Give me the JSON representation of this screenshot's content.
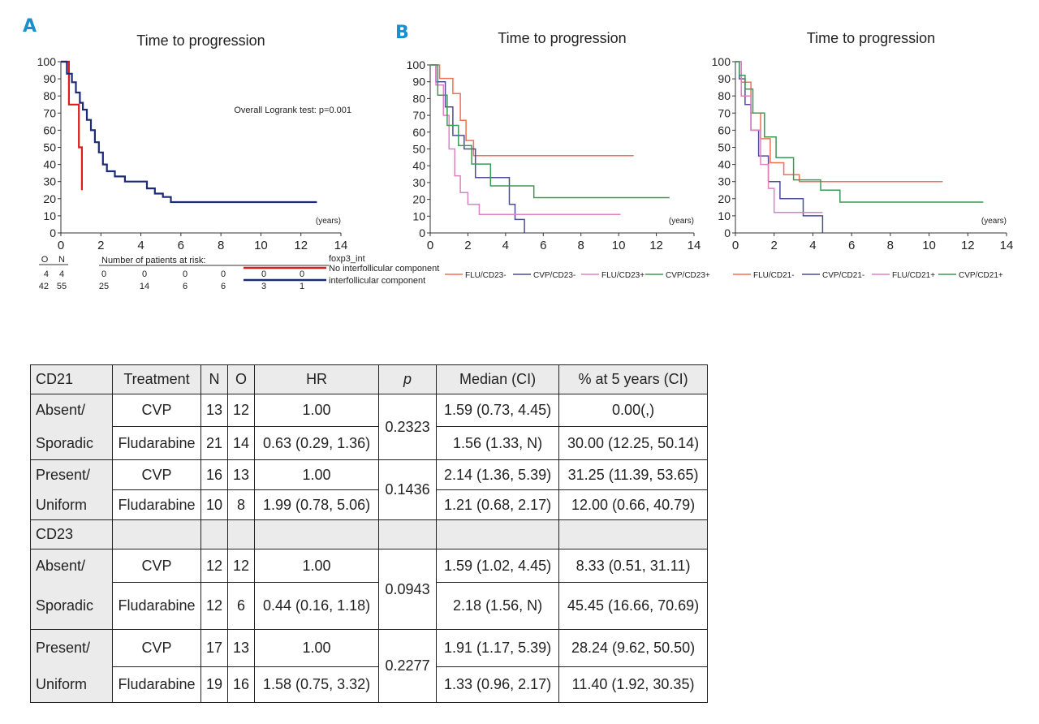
{
  "panels": {
    "a": "A",
    "b": "B"
  },
  "colors": {
    "red": "#dd1b1b",
    "navy": "#1c2a7a",
    "orange": "#f07050",
    "indigo": "#4c4c9a",
    "pink": "#e080c4",
    "green": "#3a9a55"
  },
  "chart_data": [
    {
      "type": "line",
      "title": "Time to progression",
      "xlabel": "(years)",
      "xlim": [
        0,
        14
      ],
      "ylim": [
        0,
        100
      ],
      "xticks": [
        "0",
        "2",
        "4",
        "6",
        "8",
        "10",
        "12",
        "14"
      ],
      "yticks": [
        "0",
        "10",
        "20",
        "30",
        "40",
        "50",
        "60",
        "70",
        "80",
        "90",
        "100"
      ],
      "annotation": "Overall Logrank test: p=0.001",
      "legend_title": "foxp3_int",
      "series": [
        {
          "name": "No interfollicular component",
          "color": "#dd1b1b",
          "x": [
            0,
            0.4,
            0.4,
            0.9,
            0.9,
            1.05,
            1.05
          ],
          "y": [
            100,
            100,
            75,
            75,
            50,
            50,
            25
          ]
        },
        {
          "name": "interfollicular component",
          "color": "#1c2a7a",
          "x": [
            0,
            0.3,
            0.3,
            0.55,
            0.55,
            0.75,
            0.75,
            0.95,
            0.95,
            1.1,
            1.1,
            1.3,
            1.3,
            1.5,
            1.5,
            1.7,
            1.7,
            1.9,
            1.9,
            2.1,
            2.1,
            2.3,
            2.3,
            2.7,
            2.7,
            3.2,
            3.2,
            4.3,
            4.3,
            4.7,
            4.7,
            5.1,
            5.1,
            5.5,
            5.5,
            12.8
          ],
          "y": [
            100,
            100,
            93,
            93,
            88,
            88,
            82,
            82,
            76,
            76,
            72,
            72,
            66,
            66,
            60,
            60,
            53,
            53,
            47,
            47,
            40,
            40,
            36,
            36,
            33,
            33,
            30,
            30,
            26,
            26,
            23,
            23,
            21,
            21,
            18,
            18
          ]
        }
      ],
      "risk_table": {
        "col_o": "O",
        "col_n": "N",
        "title": "Number of patients at risk:",
        "rows": [
          {
            "o": "4",
            "n": "4",
            "counts": [
              "0",
              "0",
              "0",
              "0",
              "0",
              "0"
            ]
          },
          {
            "o": "42",
            "n": "55",
            "counts": [
              "25",
              "14",
              "6",
              "6",
              "3",
              "1"
            ]
          }
        ]
      }
    },
    {
      "type": "line",
      "title": "Time to progression",
      "xlabel": "(years)",
      "xlim": [
        0,
        14
      ],
      "ylim": [
        0,
        100
      ],
      "xticks": [
        "0",
        "2",
        "4",
        "6",
        "8",
        "10",
        "12",
        "14"
      ],
      "yticks": [
        "0",
        "10",
        "20",
        "30",
        "40",
        "50",
        "60",
        "70",
        "80",
        "90",
        "100"
      ],
      "series": [
        {
          "name": "FLU/CD23-",
          "color": "#f07050",
          "x": [
            0,
            0.5,
            0.5,
            1.2,
            1.2,
            1.6,
            1.6,
            1.9,
            1.9,
            2.3,
            2.3,
            10.8
          ],
          "y": [
            100,
            100,
            92,
            92,
            83,
            83,
            67,
            67,
            55,
            55,
            46,
            46
          ]
        },
        {
          "name": "CVP/CD23-",
          "color": "#4c4c9a",
          "x": [
            0,
            0.3,
            0.3,
            0.8,
            0.8,
            1.2,
            1.2,
            1.8,
            1.8,
            2.4,
            2.4,
            4.2,
            4.2,
            4.5,
            4.5,
            5.0,
            5.0
          ],
          "y": [
            100,
            100,
            90,
            90,
            75,
            75,
            58,
            58,
            50,
            50,
            33,
            33,
            17,
            17,
            8,
            8,
            0
          ]
        },
        {
          "name": "FLU/CD23+",
          "color": "#e080c4",
          "x": [
            0,
            0.3,
            0.3,
            0.7,
            0.7,
            1.0,
            1.0,
            1.3,
            1.3,
            1.6,
            1.6,
            2.0,
            2.0,
            2.6,
            2.6,
            10.1
          ],
          "y": [
            100,
            100,
            88,
            88,
            70,
            70,
            50,
            50,
            34,
            34,
            24,
            24,
            17,
            17,
            11,
            11
          ]
        },
        {
          "name": "CVP/CD23+",
          "color": "#3a9a55",
          "x": [
            0,
            0.4,
            0.4,
            0.9,
            0.9,
            1.5,
            1.5,
            2.2,
            2.2,
            3.2,
            3.2,
            5.5,
            5.5,
            12.7
          ],
          "y": [
            100,
            100,
            82,
            82,
            64,
            64,
            52,
            52,
            41,
            41,
            28,
            28,
            21,
            21
          ]
        }
      ]
    },
    {
      "type": "line",
      "title": "Time to progression",
      "xlabel": "(years)",
      "xlim": [
        0,
        14
      ],
      "ylim": [
        0,
        100
      ],
      "xticks": [
        "0",
        "2",
        "4",
        "6",
        "8",
        "10",
        "12",
        "14"
      ],
      "yticks": [
        "0",
        "10",
        "20",
        "30",
        "40",
        "50",
        "60",
        "70",
        "80",
        "90",
        "100"
      ],
      "series": [
        {
          "name": "FLU/CD21-",
          "color": "#f07050",
          "x": [
            0,
            0.3,
            0.3,
            0.8,
            0.8,
            1.3,
            1.3,
            1.8,
            1.8,
            2.5,
            2.5,
            3.3,
            3.3,
            10.7
          ],
          "y": [
            100,
            100,
            88,
            88,
            70,
            70,
            55,
            55,
            41,
            41,
            34,
            34,
            30,
            30
          ]
        },
        {
          "name": "CVP/CD21-",
          "color": "#4c4c9a",
          "x": [
            0,
            0.2,
            0.2,
            0.5,
            0.5,
            0.8,
            0.8,
            1.2,
            1.2,
            1.7,
            1.7,
            2.3,
            2.3,
            3.5,
            3.5,
            4.5,
            4.5
          ],
          "y": [
            100,
            100,
            90,
            90,
            75,
            75,
            60,
            60,
            45,
            45,
            30,
            30,
            20,
            20,
            10,
            10,
            0
          ]
        },
        {
          "name": "FLU/CD21+",
          "color": "#e080c4",
          "x": [
            0,
            0.3,
            0.3,
            0.8,
            0.8,
            1.3,
            1.3,
            1.7,
            1.7,
            2.0,
            2.0,
            4.5
          ],
          "y": [
            100,
            100,
            80,
            80,
            60,
            60,
            40,
            40,
            26,
            26,
            12,
            12
          ]
        },
        {
          "name": "CVP/CD21+",
          "color": "#3a9a55",
          "x": [
            0,
            0.2,
            0.2,
            0.5,
            0.5,
            0.9,
            0.9,
            1.5,
            1.5,
            2.1,
            2.1,
            3.0,
            3.0,
            4.4,
            4.4,
            5.4,
            5.4,
            12.8
          ],
          "y": [
            100,
            100,
            92,
            92,
            84,
            84,
            70,
            70,
            56,
            56,
            44,
            44,
            31,
            31,
            25,
            25,
            18,
            18
          ]
        }
      ]
    }
  ],
  "table": {
    "headers": [
      "CD21",
      "Treatment",
      "N",
      "O",
      "HR",
      "p",
      "Median (CI)",
      "% at 5 years (CI)"
    ],
    "section2": "CD23",
    "rows": {
      "r1": {
        "label": "Absent/",
        "treatment": "CVP",
        "n": "13",
        "o": "12",
        "hr": "1.00",
        "p": "0.2323",
        "median": "1.59 (0.73, 4.45)",
        "pct": "0.00(,)"
      },
      "r2": {
        "label": "Sporadic",
        "treatment": "Fludarabine",
        "n": "21",
        "o": "14",
        "hr": "0.63 (0.29, 1.36)",
        "median": "1.56 (1.33, N)",
        "pct": "30.00 (12.25, 50.14)"
      },
      "r3": {
        "label": "Present/",
        "treatment": "CVP",
        "n": "16",
        "o": "13",
        "hr": "1.00",
        "p": "0.1436",
        "median": "2.14 (1.36, 5.39)",
        "pct": "31.25 (11.39, 53.65)"
      },
      "r4": {
        "label": "Uniform",
        "treatment": "Fludarabine",
        "n": "10",
        "o": "8",
        "hr": "1.99 (0.78, 5.06)",
        "median": "1.21 (0.68, 2.17)",
        "pct": "12.00 (0.66, 40.79)"
      },
      "r5": {
        "label": "Absent/",
        "treatment": "CVP",
        "n": "12",
        "o": "12",
        "hr": "1.00",
        "p": "0.0943",
        "median": "1.59 (1.02, 4.45)",
        "pct": "8.33 (0.51, 31.11)"
      },
      "r6": {
        "label": "Sporadic",
        "treatment": "Fludarabine",
        "n": "12",
        "o": "6",
        "hr": "0.44 (0.16, 1.18)",
        "median": "2.18 (1.56, N)",
        "pct": "45.45 (16.66, 70.69)"
      },
      "r7": {
        "label": "Present/",
        "treatment": "CVP",
        "n": "17",
        "o": "13",
        "hr": "1.00",
        "p": "0.2277",
        "median": "1.91 (1.17, 5.39)",
        "pct": "28.24 (9.62, 50.50)"
      },
      "r8": {
        "label": "Uniform",
        "treatment": "Fludarabine",
        "n": "19",
        "o": "16",
        "hr": "1.58 (0.75, 3.32)",
        "median": "1.33 (0.96, 2.17)",
        "pct": "11.40 (1.92, 30.35)"
      }
    }
  }
}
